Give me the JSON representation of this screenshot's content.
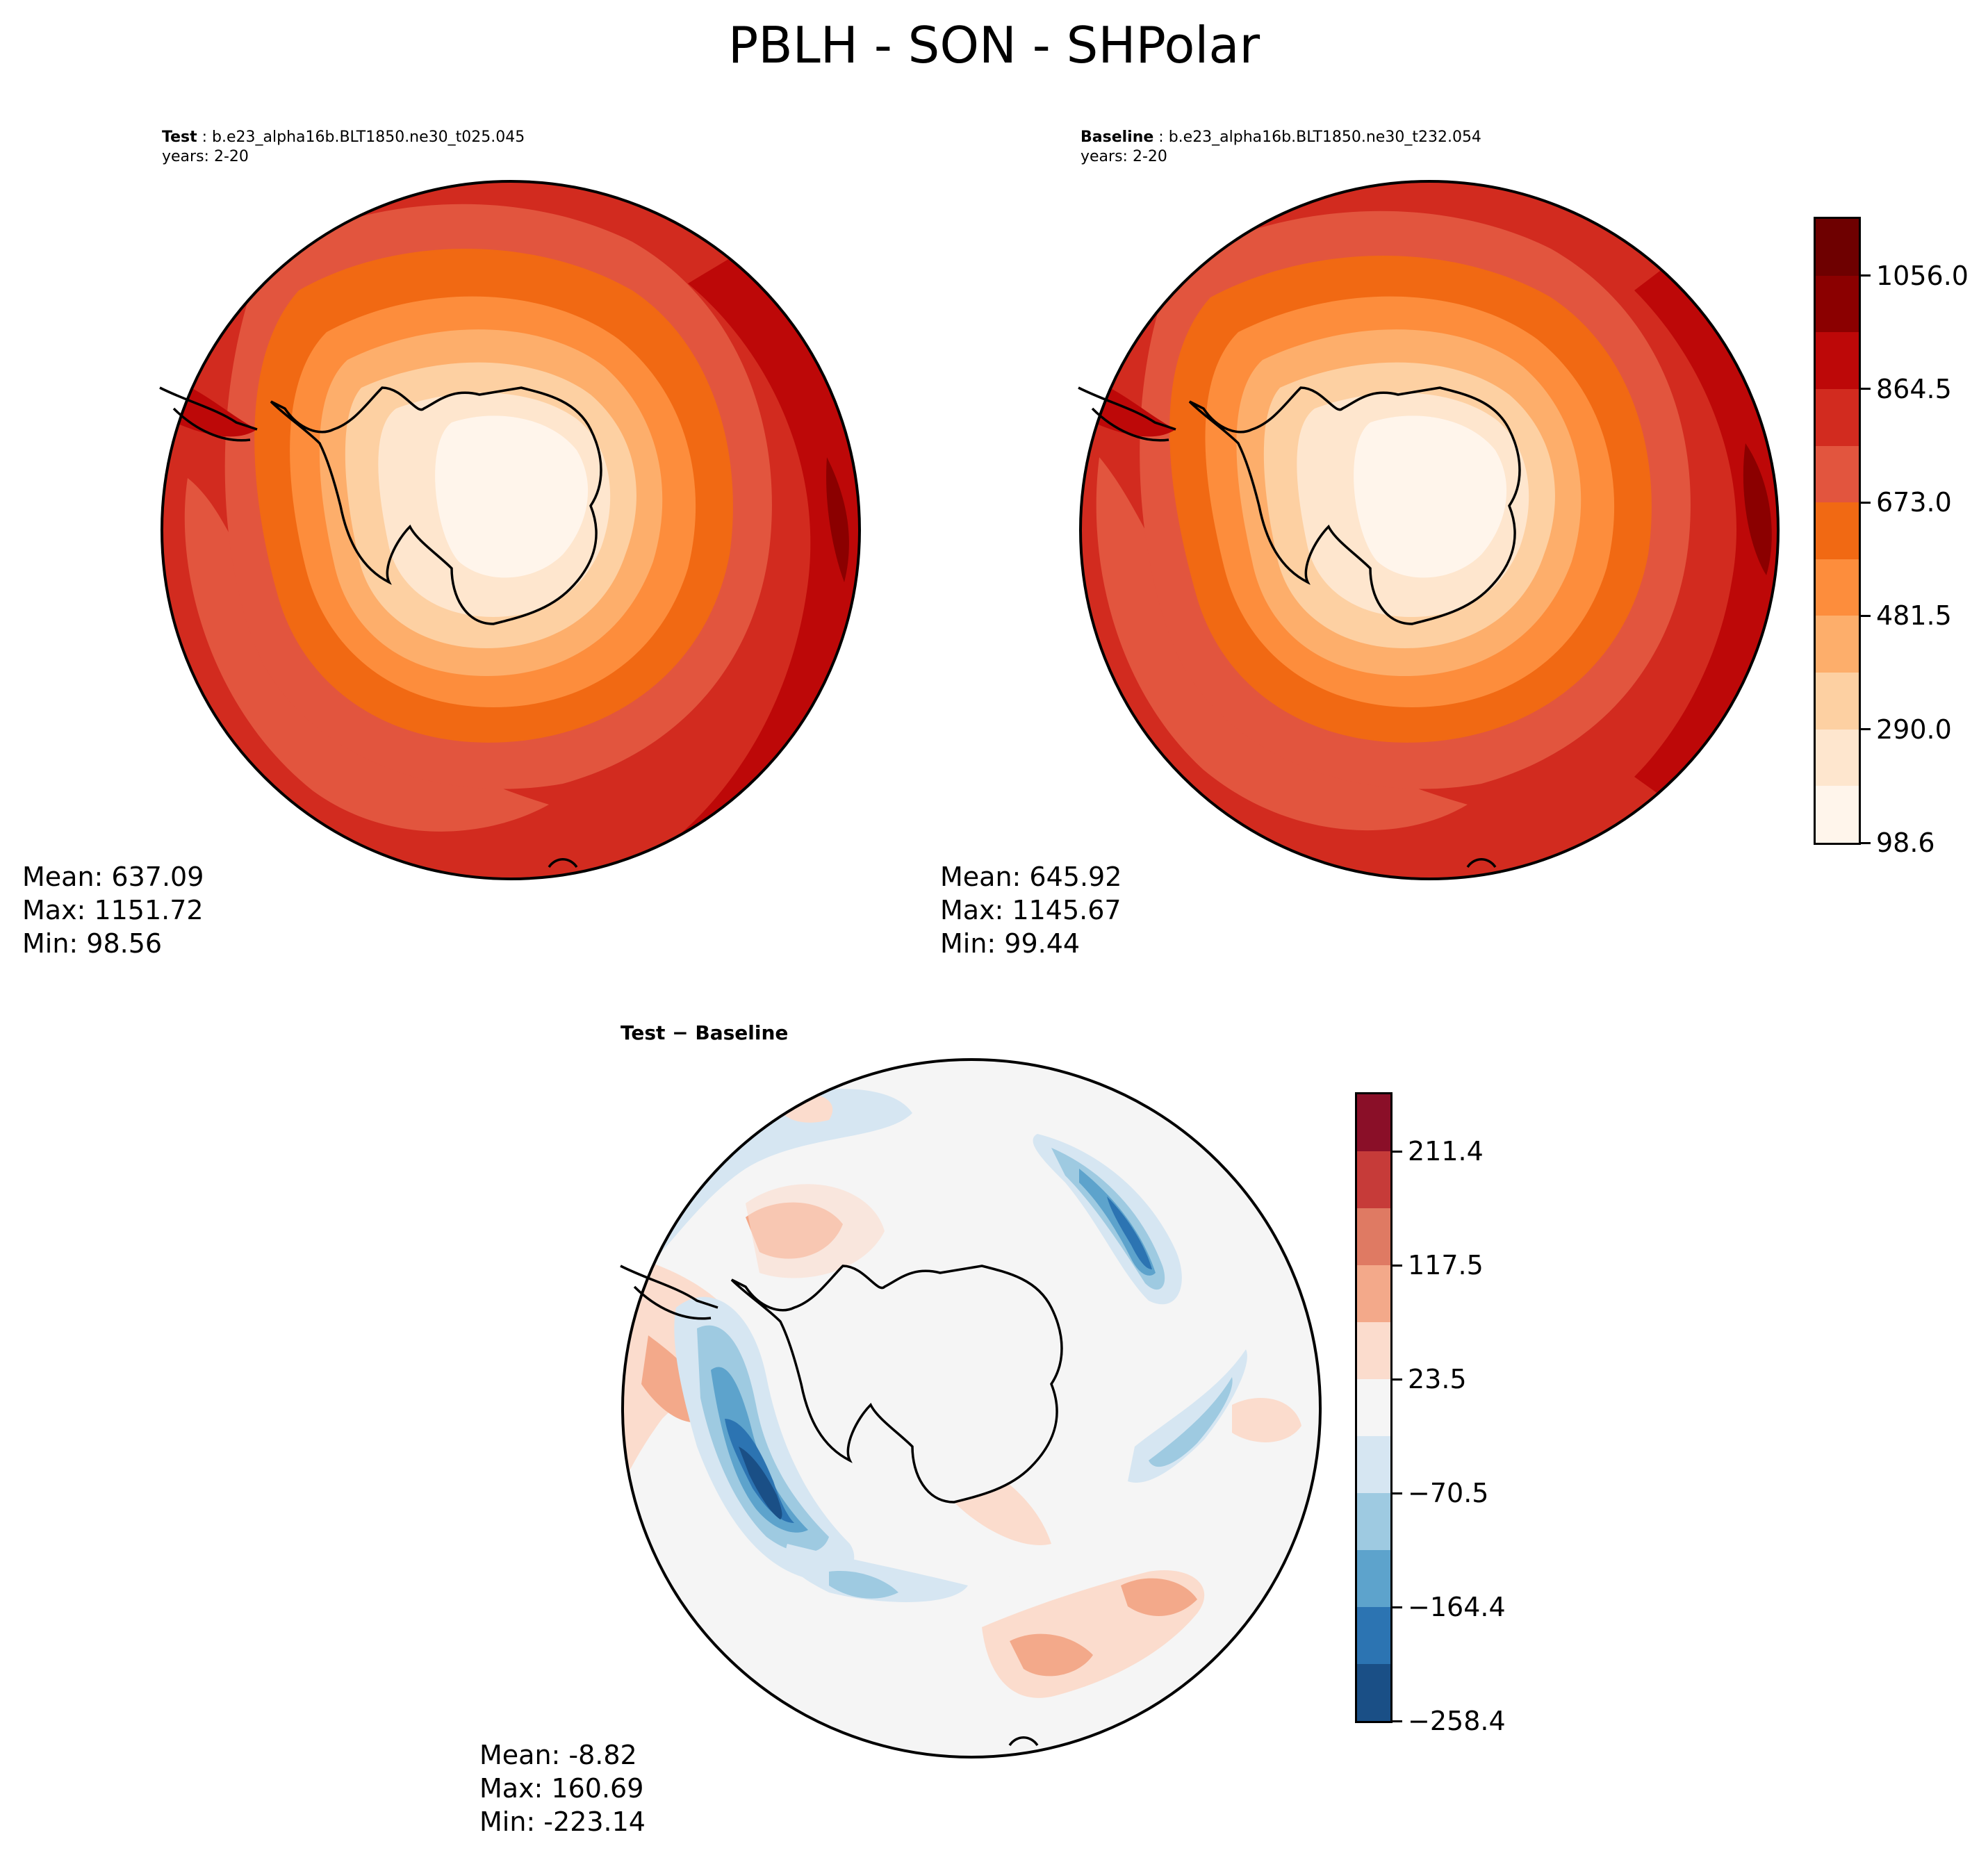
{
  "title": "PBLH - SON - SHPolar",
  "colors": {
    "coast": "#000000",
    "reds": [
      "#fff5eb",
      "#fee6ce",
      "#fdd0a2",
      "#fdae6b",
      "#fd8d3c",
      "#f16913",
      "#e2553e",
      "#d22b1f",
      "#bd0808",
      "#8b0000"
    ],
    "diverging": [
      "#1a4f86",
      "#2c74b2",
      "#5da3cc",
      "#9ecae1",
      "#d6e6f2",
      "#f5f5f5",
      "#fbdccd",
      "#f3a98a",
      "#df7a63",
      "#c63b39",
      "#8a0f28"
    ]
  },
  "panels": {
    "test": {
      "label_bold": "Test",
      "label_rest": " : b.e23_alpha16b.BLT1850.ne30_t025.045",
      "years": "years: 2-20",
      "mean": "Mean: 637.09",
      "max": "Max: 1151.72",
      "min": "Min: 98.56"
    },
    "baseline": {
      "label_bold": "Baseline",
      "label_rest": " : b.e23_alpha16b.BLT1850.ne30_t232.054",
      "years": "years: 2-20",
      "mean": "Mean: 645.92",
      "max": "Max: 1145.67",
      "min": "Min: 99.44"
    },
    "diff": {
      "label": "Test − Baseline",
      "mean": "Mean: -8.82",
      "max": "Max: 160.69",
      "min": "Min: -223.14"
    }
  },
  "colorbar_main": {
    "ticks": [
      "1056.0",
      "864.5",
      "673.0",
      "481.5",
      "290.0",
      "98.6"
    ],
    "range": [
      98.6,
      1151.7
    ]
  },
  "colorbar_diff": {
    "ticks": [
      "211.4",
      "117.5",
      "23.5",
      "−70.5",
      "−164.4",
      "−258.4"
    ],
    "range": [
      -258.4,
      258.4
    ]
  },
  "chart_data": [
    {
      "type": "heatmap",
      "title": "Test",
      "variable": "PBLH",
      "season": "SON",
      "region": "SHPolar",
      "projection": "south-polar-stereographic",
      "mean": 637.09,
      "max": 1151.72,
      "min": 98.56,
      "levels": [
        98.6,
        194.3,
        290.0,
        385.8,
        481.5,
        577.3,
        673.0,
        768.8,
        864.5,
        960.3,
        1056.0
      ]
    },
    {
      "type": "heatmap",
      "title": "Baseline",
      "variable": "PBLH",
      "season": "SON",
      "region": "SHPolar",
      "projection": "south-polar-stereographic",
      "mean": 645.92,
      "max": 1145.67,
      "min": 99.44,
      "levels": [
        98.6,
        194.3,
        290.0,
        385.8,
        481.5,
        577.3,
        673.0,
        768.8,
        864.5,
        960.3,
        1056.0
      ]
    },
    {
      "type": "heatmap",
      "title": "Test − Baseline",
      "variable": "PBLH",
      "season": "SON",
      "region": "SHPolar",
      "projection": "south-polar-stereographic",
      "mean": -8.82,
      "max": 160.69,
      "min": -223.14,
      "levels": [
        -258.4,
        -211.4,
        -164.4,
        -117.5,
        -70.5,
        -23.5,
        23.5,
        70.5,
        117.5,
        164.4,
        211.4
      ]
    }
  ]
}
